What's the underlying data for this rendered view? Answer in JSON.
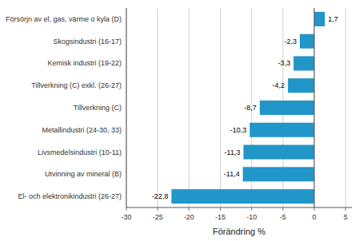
{
  "chart_data": {
    "type": "bar",
    "orientation": "horizontal",
    "categories": [
      "El- och elektronikindustri (26-27)",
      "Utvinning av mineral (B)",
      "Livsmedelsindustri (10-11)",
      "Metallindustri (24-30, 33)",
      "Tillverkning (C)",
      "Tillverkning (C) exkl. (26-27)",
      "Kemisk industri (19-22)",
      "Skogsindustri (16-17)",
      "Försörjn av el, gas, värme o kyla (D)"
    ],
    "values": [
      -22.8,
      -11.4,
      -11.3,
      -10.3,
      -8.7,
      -4.2,
      -3.3,
      -2.3,
      1.7
    ],
    "value_labels": [
      "-22,8",
      "-11,4",
      "-11,3",
      "-10,3",
      "-8,7",
      "-4,2",
      "-3,3",
      "-2,3",
      "1,7"
    ],
    "data_labels": true,
    "color": "#2196c8",
    "xlabel": "Förändring %",
    "xlim": [
      -30,
      6
    ],
    "xticks": [
      -30,
      -25,
      -20,
      -15,
      -10,
      -5,
      0,
      5
    ],
    "grid": true
  }
}
